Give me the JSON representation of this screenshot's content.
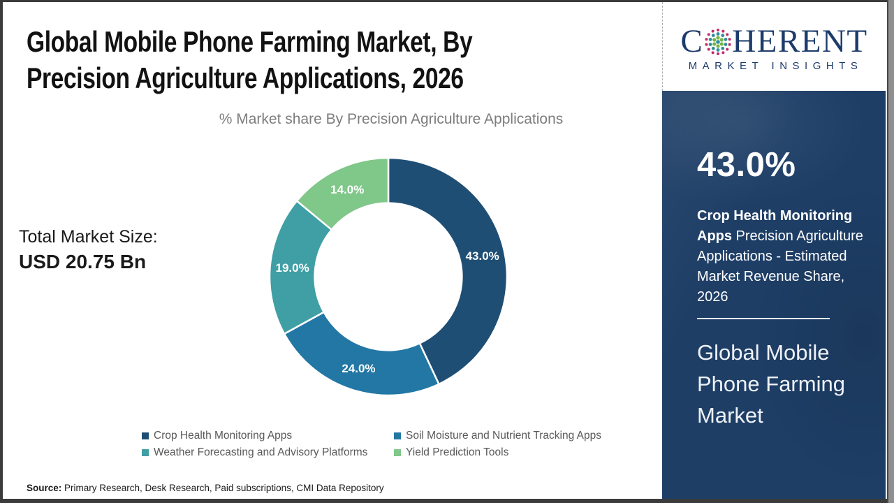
{
  "page": {
    "title": {
      "line1": "Global Mobile Phone Farming Market, By",
      "line2": "Precision Agriculture Applications, 2026"
    },
    "subtitle": "% Market share By Precision Agriculture Applications",
    "total_market": {
      "label": "Total Market Size:",
      "value": "USD 20.75 Bn"
    },
    "source": {
      "label": "Source:",
      "text": " Primary Research, Desk Research, Paid subscriptions, CMI Data Repository"
    }
  },
  "logo": {
    "part1": "C",
    "part2": "HERENT",
    "tagline": "MARKET INSIGHTS",
    "colors": {
      "navy": "#1d3b6b",
      "dot_magenta": "#c22a66",
      "dot_teal": "#2f8f9d",
      "dot_green": "#76b547"
    }
  },
  "sidebar": {
    "bg_color": "#1e3e66",
    "stat": "43.0%",
    "desc_bold": "Crop Health Monitoring Apps",
    "desc_rest": " Precision Agriculture Applications - Estimated Market Revenue Share, 2026",
    "market_name": "Global Mobile Phone Farming Market"
  },
  "chart_data": {
    "type": "pie",
    "donut": true,
    "title": "% Market share By Precision Agriculture Applications",
    "categories": [
      "Crop Health Monitoring Apps",
      "Soil Moisture and Nutrient Tracking Apps",
      "Weather Forecasting and Advisory Platforms",
      "Yield Prediction Tools"
    ],
    "values": [
      43.0,
      24.0,
      19.0,
      14.0
    ],
    "labels": [
      "43.0%",
      "24.0%",
      "19.0%",
      "14.0%"
    ],
    "colors": [
      "#1f4e74",
      "#2277a4",
      "#3f9fa5",
      "#80c78a"
    ],
    "start_angle_deg": 0,
    "direction": "clockwise",
    "inner_radius_ratio": 0.62,
    "legend_position": "bottom",
    "total_market_size": "USD 20.75 Bn"
  }
}
